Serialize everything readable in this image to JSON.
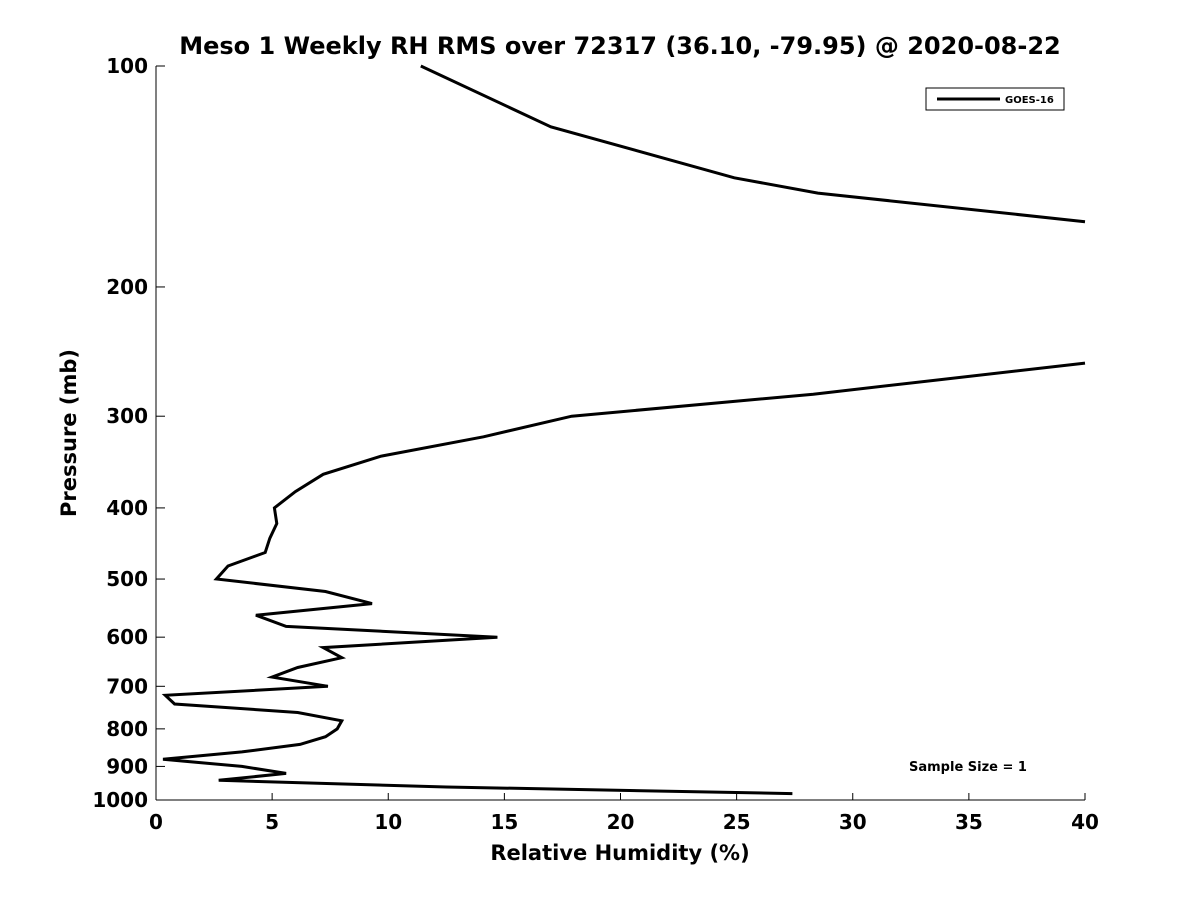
{
  "chart_data": {
    "type": "line",
    "title": "Meso 1 Weekly RH RMS over 72317 (36.10, -79.95) @ 2020-08-22",
    "xlabel": "Relative Humidity (%)",
    "ylabel": "Pressure (mb)",
    "xlim": [
      0,
      40
    ],
    "ylim": [
      1000,
      100
    ],
    "y_scale": "log",
    "x_ticks": [
      0,
      5,
      10,
      15,
      20,
      25,
      30,
      35,
      40
    ],
    "y_ticks": [
      100,
      200,
      300,
      400,
      500,
      600,
      700,
      800,
      900,
      1000
    ],
    "grid": false,
    "legend": {
      "position": "top-right",
      "entries": [
        "GOES-16"
      ]
    },
    "annotation": "Sample Size = 1",
    "series": [
      {
        "name": "GOES-16",
        "color": "#000000",
        "segments": [
          [
            {
              "x": 11.4,
              "y": 100
            },
            {
              "x": 17.0,
              "y": 121
            },
            {
              "x": 24.9,
              "y": 142
            },
            {
              "x": 28.5,
              "y": 149
            },
            {
              "x": 40.0,
              "y": 163
            }
          ],
          [
            {
              "x": 40.0,
              "y": 254
            },
            {
              "x": 28.3,
              "y": 280
            },
            {
              "x": 17.9,
              "y": 300
            },
            {
              "x": 14.1,
              "y": 320
            },
            {
              "x": 9.7,
              "y": 340
            },
            {
              "x": 7.2,
              "y": 360
            },
            {
              "x": 6.0,
              "y": 380
            },
            {
              "x": 5.1,
              "y": 400
            },
            {
              "x": 5.2,
              "y": 420
            },
            {
              "x": 4.9,
              "y": 440
            },
            {
              "x": 4.7,
              "y": 460
            },
            {
              "x": 3.1,
              "y": 480
            },
            {
              "x": 2.6,
              "y": 500
            },
            {
              "x": 7.3,
              "y": 520
            },
            {
              "x": 9.3,
              "y": 540
            },
            {
              "x": 4.3,
              "y": 560
            },
            {
              "x": 5.6,
              "y": 580
            },
            {
              "x": 14.7,
              "y": 600
            },
            {
              "x": 7.2,
              "y": 620
            },
            {
              "x": 8.0,
              "y": 640
            },
            {
              "x": 6.1,
              "y": 660
            },
            {
              "x": 5.0,
              "y": 680
            },
            {
              "x": 7.4,
              "y": 700
            },
            {
              "x": 0.4,
              "y": 720
            },
            {
              "x": 0.8,
              "y": 740
            },
            {
              "x": 6.1,
              "y": 760
            },
            {
              "x": 8.0,
              "y": 780
            },
            {
              "x": 7.8,
              "y": 800
            },
            {
              "x": 7.3,
              "y": 820
            },
            {
              "x": 6.2,
              "y": 840
            },
            {
              "x": 3.7,
              "y": 860
            },
            {
              "x": 0.3,
              "y": 880
            },
            {
              "x": 3.7,
              "y": 900
            },
            {
              "x": 5.6,
              "y": 920
            },
            {
              "x": 2.7,
              "y": 940
            },
            {
              "x": 12.5,
              "y": 960
            },
            {
              "x": 27.4,
              "y": 980
            }
          ]
        ]
      }
    ]
  }
}
